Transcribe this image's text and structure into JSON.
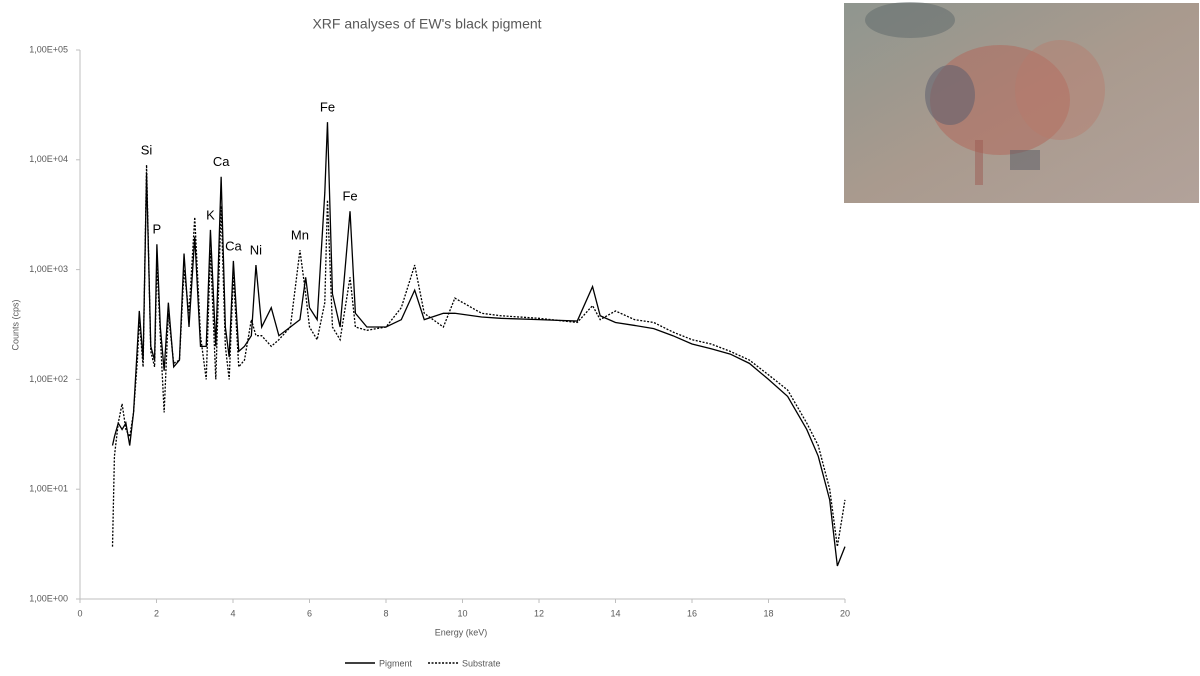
{
  "chart_data": {
    "type": "line",
    "title": "XRF analyses of EW's black pigment",
    "x_label": "Energy (keV)",
    "y_label": "Counts (cps)",
    "ylog": true,
    "grid": false,
    "legend": "bottom",
    "x": [
      0.85,
      0.9,
      1.0,
      1.1,
      1.2,
      1.3,
      1.4,
      1.5,
      1.55,
      1.65,
      1.74,
      1.85,
      1.95,
      2.01,
      2.1,
      2.2,
      2.31,
      2.45,
      2.6,
      2.72,
      2.85,
      3.0,
      3.15,
      3.3,
      3.41,
      3.55,
      3.69,
      3.8,
      3.9,
      4.01,
      4.15,
      4.3,
      4.48,
      4.6,
      4.75,
      5.0,
      5.2,
      5.5,
      5.75,
      5.9,
      6.0,
      6.2,
      6.4,
      6.47,
      6.6,
      6.8,
      7.06,
      7.2,
      7.5,
      8.0,
      8.4,
      8.75,
      9.0,
      9.5,
      9.8,
      10.5,
      11,
      12,
      13,
      13.4,
      13.6,
      14,
      14.5,
      15,
      15.5,
      16,
      16.5,
      17,
      17.5,
      18,
      18.5,
      19,
      19.3,
      19.6,
      19.8,
      20
    ],
    "series": [
      {
        "name": "Pigment",
        "color": "#000000",
        "dash": "solid",
        "values": [
          25,
          30,
          40,
          35,
          40,
          25,
          50,
          200,
          420,
          150,
          7500,
          200,
          150,
          1700,
          300,
          120,
          500,
          130,
          150,
          1400,
          300,
          2000,
          200,
          200,
          2300,
          200,
          7000,
          300,
          160,
          1200,
          180,
          200,
          250,
          1100,
          300,
          450,
          250,
          300,
          350,
          850,
          450,
          350,
          5000,
          22000,
          600,
          300,
          3400,
          400,
          300,
          300,
          350,
          650,
          350,
          400,
          400,
          370,
          360,
          350,
          340,
          700,
          380,
          330,
          310,
          290,
          250,
          210,
          190,
          170,
          140,
          100,
          70,
          35,
          20,
          8,
          2,
          3
        ]
      },
      {
        "name": "Substrate",
        "color": "#000000",
        "dash": "dotted",
        "values": [
          3,
          20,
          40,
          60,
          35,
          30,
          50,
          150,
          350,
          130,
          9000,
          180,
          130,
          1200,
          250,
          50,
          400,
          140,
          150,
          1000,
          400,
          3000,
          250,
          100,
          1500,
          100,
          3800,
          200,
          100,
          900,
          130,
          150,
          350,
          250,
          250,
          200,
          230,
          300,
          1500,
          600,
          300,
          230,
          500,
          4300,
          300,
          230,
          850,
          300,
          280,
          300,
          450,
          1100,
          400,
          300,
          550,
          400,
          380,
          360,
          330,
          470,
          350,
          420,
          350,
          330,
          270,
          230,
          210,
          180,
          150,
          110,
          80,
          40,
          25,
          10,
          3,
          8
        ]
      }
    ],
    "annotations": [
      {
        "text": "Si",
        "x": 1.74,
        "y": 9000
      },
      {
        "text": "P",
        "x": 2.01,
        "y": 1700
      },
      {
        "text": "K",
        "x": 3.41,
        "y": 2300
      },
      {
        "text": "Ca",
        "x": 3.69,
        "y": 7000
      },
      {
        "text": "Ca",
        "x": 4.01,
        "y": 1200
      },
      {
        "text": "Ni",
        "x": 4.6,
        "y": 1100
      },
      {
        "text": "Mn",
        "x": 5.75,
        "y": 1500
      },
      {
        "text": "Fe",
        "x": 6.47,
        "y": 22000
      },
      {
        "text": "Fe",
        "x": 7.06,
        "y": 3400
      }
    ],
    "xlim": [
      0,
      20
    ],
    "xticks": [
      0,
      2,
      4,
      6,
      8,
      10,
      12,
      14,
      16,
      18,
      20
    ],
    "ylim": [
      1,
      100000
    ],
    "yticks": [
      {
        "value": 1,
        "label": "1,00E+00"
      },
      {
        "value": 10,
        "label": "1,00E+01"
      },
      {
        "value": 100,
        "label": "1,00E+02"
      },
      {
        "value": 1000,
        "label": "1,00E+03"
      },
      {
        "value": 10000,
        "label": "1,00E+04"
      },
      {
        "value": 100000,
        "label": "1,00E+05"
      }
    ]
  }
}
